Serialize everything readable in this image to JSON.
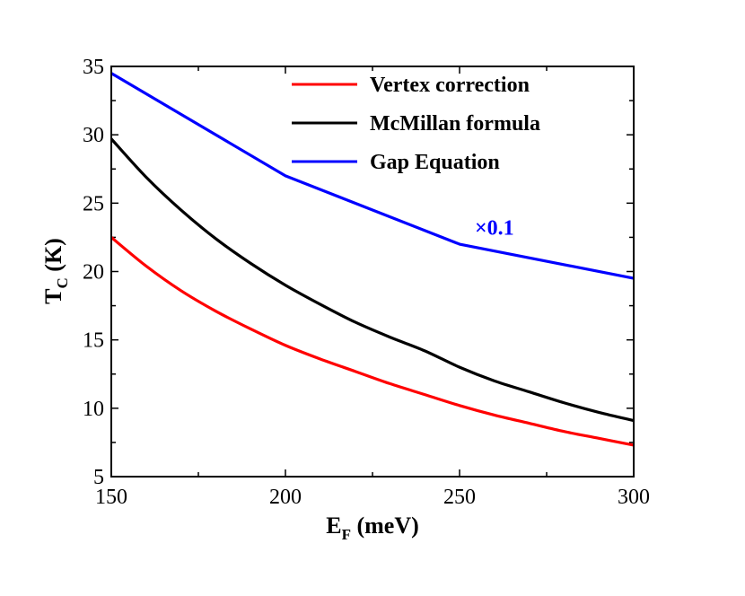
{
  "chart_data": {
    "type": "line",
    "title": "",
    "xlabel": "E",
    "xlabel_sub": "F",
    "xlabel_unit": " (meV)",
    "ylabel": "T",
    "ylabel_sub": "C",
    "ylabel_unit": " (K)",
    "xlim": [
      150,
      300
    ],
    "ylim": [
      5,
      35
    ],
    "xticks": [
      150,
      200,
      250,
      300
    ],
    "yticks": [
      5,
      10,
      15,
      20,
      25,
      30,
      35
    ],
    "legend_position": "top-right",
    "series": [
      {
        "name": "Vertex correction",
        "color": "#ff0000",
        "x": [
          150,
          160,
          170,
          180,
          190,
          200,
          210,
          220,
          230,
          240,
          250,
          260,
          270,
          280,
          290,
          300
        ],
        "y": [
          22.5,
          20.4,
          18.6,
          17.1,
          15.8,
          14.6,
          13.6,
          12.7,
          11.8,
          11.0,
          10.2,
          9.5,
          8.9,
          8.3,
          7.8,
          7.3
        ]
      },
      {
        "name": "McMillan formula",
        "color": "#000000",
        "x": [
          150,
          160,
          170,
          180,
          190,
          200,
          210,
          220,
          230,
          240,
          250,
          260,
          270,
          280,
          290,
          300
        ],
        "y": [
          29.7,
          26.9,
          24.5,
          22.4,
          20.6,
          19.0,
          17.6,
          16.3,
          15.2,
          14.2,
          13.0,
          12.0,
          11.2,
          10.4,
          9.7,
          9.1
        ]
      },
      {
        "name": "Gap Equation",
        "color": "#0000ff",
        "x": [
          150,
          200,
          250,
          300
        ],
        "y": [
          34.5,
          27.0,
          22.0,
          19.5
        ]
      }
    ],
    "annotations": [
      {
        "text": "×0.1",
        "x": 260,
        "y": 22.7,
        "color": "#0000ff"
      }
    ]
  }
}
